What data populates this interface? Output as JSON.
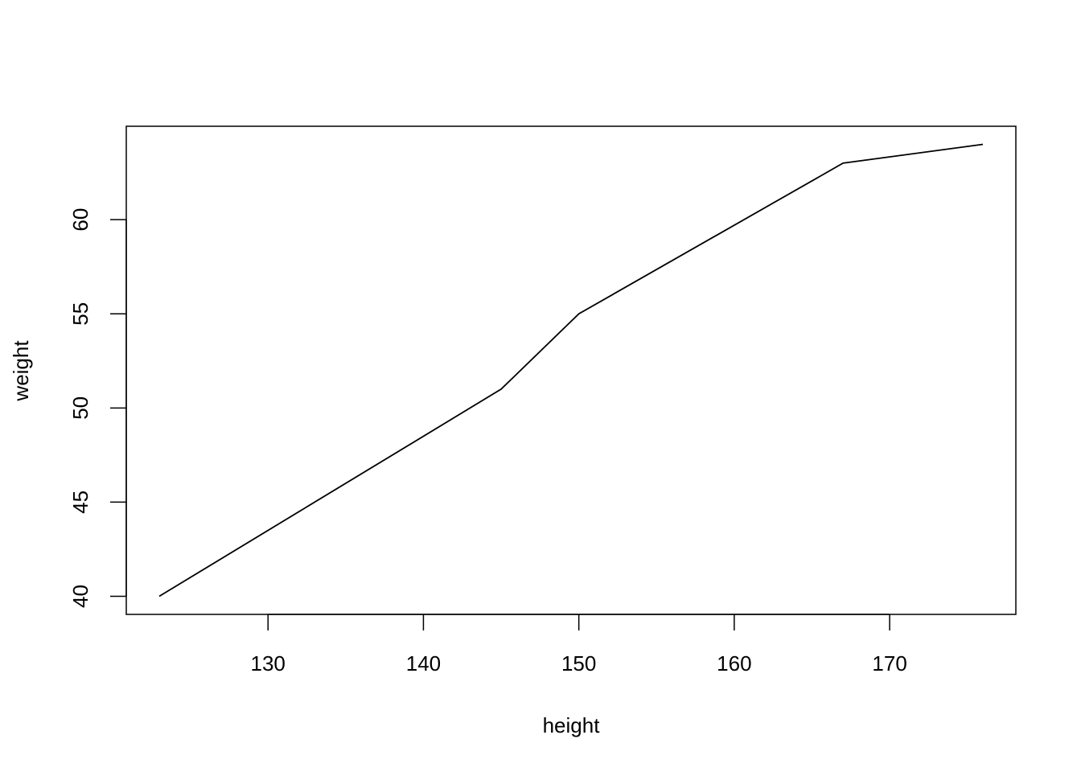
{
  "chart_data": {
    "type": "line",
    "title": "",
    "xlabel": "height",
    "ylabel": "weight",
    "x": [
      123,
      145,
      150,
      167,
      176
    ],
    "y": [
      40,
      51,
      55,
      63,
      64
    ],
    "xlim": [
      120.88,
      178.12
    ],
    "ylim": [
      39.04,
      64.96
    ],
    "xticks": [
      130,
      140,
      150,
      160,
      170
    ],
    "yticks": [
      40,
      45,
      50,
      55,
      60
    ],
    "grid": false,
    "line_color": "#000000"
  }
}
